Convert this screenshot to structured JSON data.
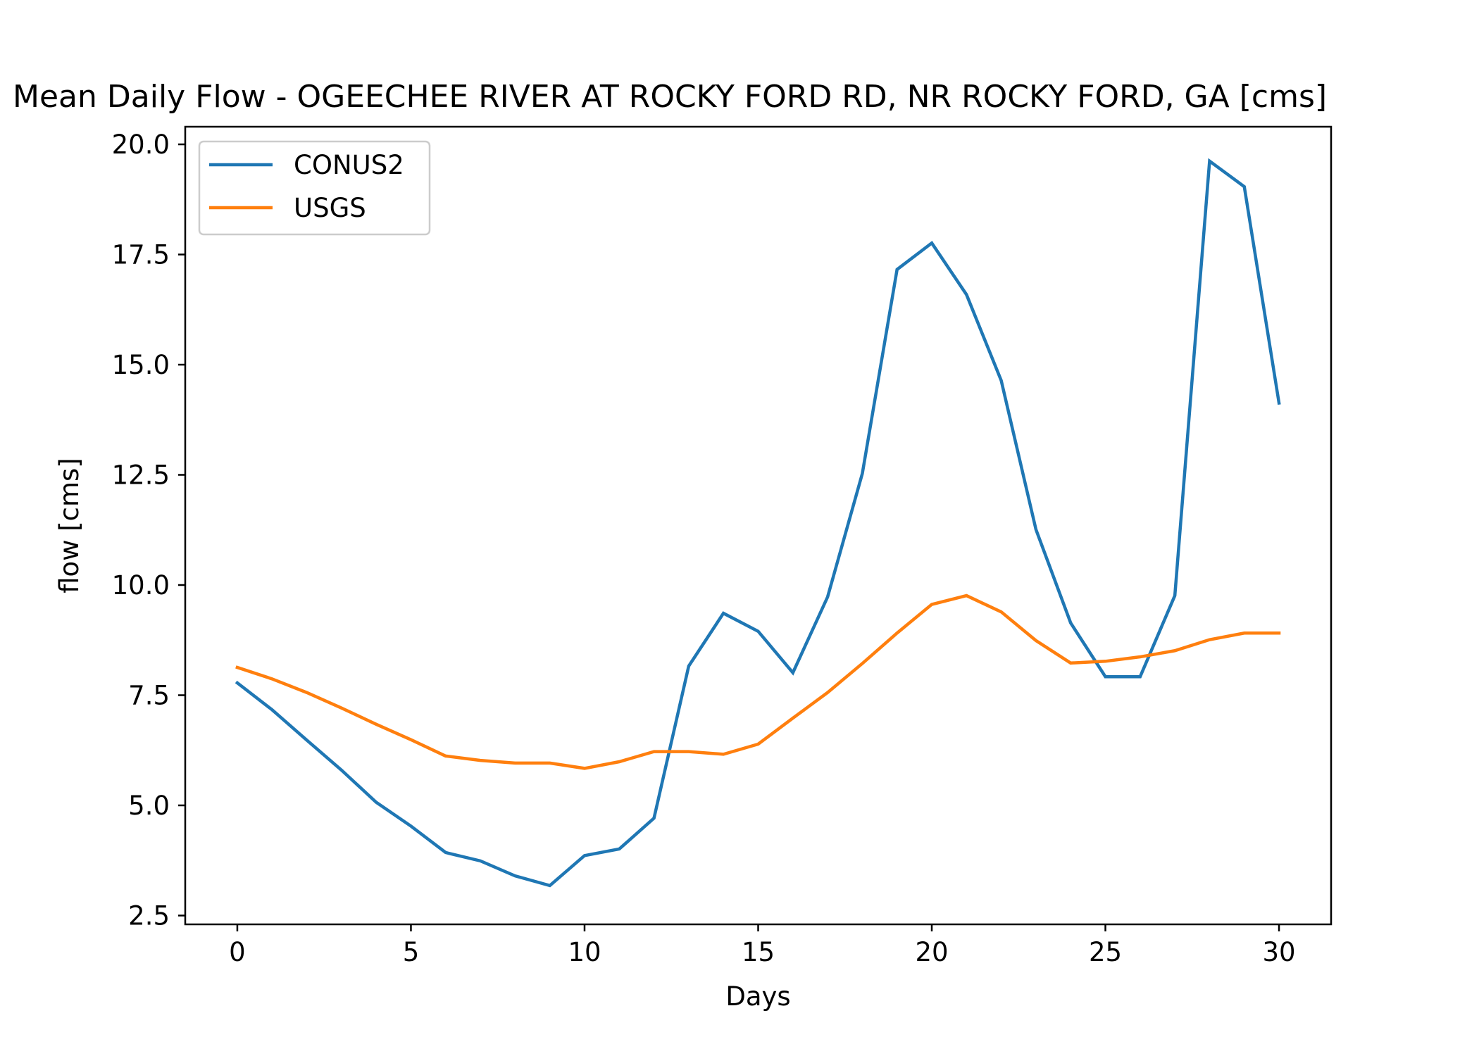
{
  "chart_data": {
    "type": "line",
    "title": "Mean Daily Flow - OGEECHEE RIVER AT ROCKY FORD RD, NR ROCKY FORD, GA [cms]",
    "xlabel": "Days",
    "ylabel": "flow [cms]",
    "xlim": [
      -1.5,
      31.5
    ],
    "ylim": [
      2.3,
      20.4
    ],
    "xticks": [
      0,
      5,
      10,
      15,
      20,
      25,
      30
    ],
    "xtick_labels": [
      "0",
      "5",
      "10",
      "15",
      "20",
      "25",
      "30"
    ],
    "yticks": [
      2.5,
      5.0,
      7.5,
      10.0,
      12.5,
      15.0,
      17.5,
      20.0
    ],
    "ytick_labels": [
      "2.5",
      "5.0",
      "7.5",
      "10.0",
      "12.5",
      "15.0",
      "17.5",
      "20.0"
    ],
    "grid": false,
    "legend_position": "top-left",
    "x": [
      0,
      1,
      2,
      3,
      4,
      5,
      6,
      7,
      8,
      9,
      10,
      11,
      12,
      13,
      14,
      15,
      16,
      17,
      18,
      19,
      20,
      21,
      22,
      23,
      24,
      25,
      26,
      27,
      28,
      29,
      30
    ],
    "series": [
      {
        "name": "CONUS2",
        "color": "#1f77b4",
        "values": [
          7.78,
          7.17,
          6.48,
          5.8,
          5.07,
          4.53,
          3.93,
          3.74,
          3.4,
          3.18,
          3.86,
          4.01,
          4.71,
          8.16,
          9.36,
          8.95,
          8.01,
          9.73,
          12.53,
          17.16,
          17.76,
          16.59,
          14.64,
          11.26,
          9.14,
          7.92,
          7.92,
          9.76,
          19.62,
          19.04,
          14.13
        ]
      },
      {
        "name": "USGS",
        "color": "#ff7f0e",
        "values": [
          8.13,
          7.87,
          7.56,
          7.21,
          6.84,
          6.49,
          6.12,
          6.02,
          5.96,
          5.96,
          5.84,
          5.99,
          6.22,
          6.22,
          6.16,
          6.39,
          6.98,
          7.56,
          8.22,
          8.91,
          9.56,
          9.76,
          9.39,
          8.74,
          8.23,
          8.27,
          8.37,
          8.51,
          8.76,
          8.91,
          8.91
        ]
      }
    ]
  }
}
